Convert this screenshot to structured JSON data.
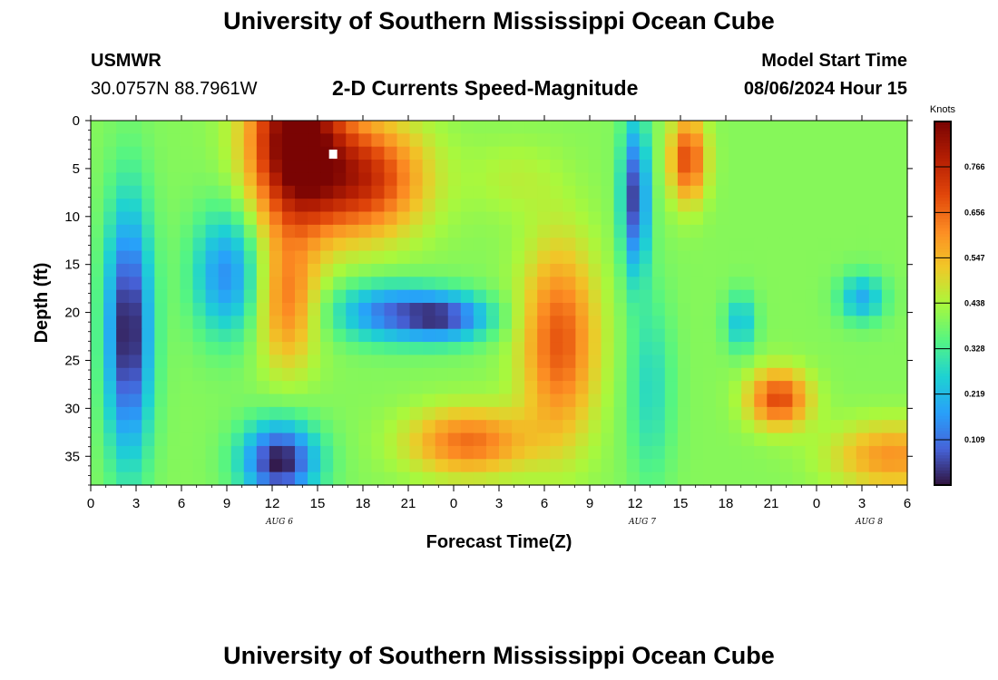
{
  "header": {
    "title": "University of Southern Mississippi Ocean Cube",
    "station": "USMWR",
    "coords": "30.0757N  88.7961W",
    "subtitle": "2-D Currents Speed-Magnitude",
    "model_start_label": "Model Start Time",
    "model_start_value": "08/06/2024 Hour 15"
  },
  "footer": {
    "title": "University of Southern Mississippi Ocean Cube"
  },
  "chart_data": {
    "type": "heatmap",
    "title": "2-D Currents Speed-Magnitude",
    "xlabel": "Forecast Time(Z)",
    "ylabel": "Depth (ft)",
    "x_unit": "hours since Aug 6 00Z",
    "x_range": [
      0,
      54
    ],
    "x_ticks": [
      {
        "h": 0,
        "label": "0"
      },
      {
        "h": 3,
        "label": "3"
      },
      {
        "h": 6,
        "label": "6"
      },
      {
        "h": 9,
        "label": "9"
      },
      {
        "h": 12,
        "label": "12"
      },
      {
        "h": 15,
        "label": "15"
      },
      {
        "h": 18,
        "label": "18"
      },
      {
        "h": 21,
        "label": "21"
      },
      {
        "h": 24,
        "label": "0"
      },
      {
        "h": 27,
        "label": "3"
      },
      {
        "h": 30,
        "label": "6"
      },
      {
        "h": 33,
        "label": "9"
      },
      {
        "h": 36,
        "label": "12"
      },
      {
        "h": 39,
        "label": "15"
      },
      {
        "h": 42,
        "label": "18"
      },
      {
        "h": 45,
        "label": "21"
      },
      {
        "h": 48,
        "label": "0"
      },
      {
        "h": 51,
        "label": "3"
      },
      {
        "h": 54,
        "label": "6"
      }
    ],
    "date_labels": [
      {
        "h": 12,
        "label": "AUG 6"
      },
      {
        "h": 36,
        "label": "AUG 7"
      },
      {
        "h": 51,
        "label": "AUG 8"
      }
    ],
    "y_range": [
      0,
      38
    ],
    "y_ticks": [
      0,
      5,
      10,
      15,
      20,
      25,
      30,
      35
    ],
    "colorbar": {
      "unit": "Knots",
      "range": [
        0,
        0.875
      ],
      "tick_values": [
        0.109,
        0.219,
        0.328,
        0.438,
        0.547,
        0.656,
        0.766
      ],
      "tick_labels": [
        "0.109",
        "0.219",
        "0.328",
        "0.438",
        "0.547",
        "0.656",
        "0.766"
      ]
    },
    "marker": {
      "h": 16,
      "depth": 3.5
    },
    "blobs": [
      {
        "h": 13.5,
        "d": 2,
        "sh": 3,
        "sd": 9,
        "a": 0.5
      },
      {
        "h": 18,
        "d": 6,
        "sh": 4,
        "sd": 6,
        "a": 0.35
      },
      {
        "h": 13,
        "d": 19,
        "sh": 2,
        "sd": 7,
        "a": 0.22
      },
      {
        "h": 2.5,
        "d": 22,
        "sh": 1.5,
        "sd": 13,
        "a": -0.4
      },
      {
        "h": 9,
        "d": 16,
        "sh": 2.2,
        "sd": 6.5,
        "a": -0.25
      },
      {
        "h": 12.5,
        "d": 35.5,
        "sh": 2.5,
        "sd": 4,
        "a": -0.4
      },
      {
        "h": 19.5,
        "d": 20,
        "sh": 3.5,
        "sd": 3,
        "a": -0.25
      },
      {
        "h": 23.5,
        "d": 20.5,
        "sh": 3,
        "sd": 2.5,
        "a": -0.3
      },
      {
        "h": 25,
        "d": 33.5,
        "sh": 4,
        "sd": 3.5,
        "a": 0.25
      },
      {
        "h": 31,
        "d": 23,
        "sh": 2.5,
        "sd": 10,
        "a": 0.28
      },
      {
        "h": 36,
        "d": 8,
        "sh": 0.9,
        "sd": 8,
        "a": -0.35
      },
      {
        "h": 39.5,
        "d": 4,
        "sh": 1.2,
        "sd": 4.5,
        "a": 0.3
      },
      {
        "h": 45.5,
        "d": 29,
        "sh": 2,
        "sd": 3,
        "a": 0.3
      },
      {
        "h": 53,
        "d": 35,
        "sh": 4,
        "sd": 3.5,
        "a": 0.2
      },
      {
        "h": 43,
        "d": 21,
        "sh": 1,
        "sd": 3,
        "a": -0.17
      },
      {
        "h": 51,
        "d": 18.5,
        "sh": 1.5,
        "sd": 2.5,
        "a": -0.2
      },
      {
        "h": 37,
        "d": 28,
        "sh": 1.5,
        "sd": 10,
        "a": -0.12
      },
      {
        "h": 28,
        "d": 6,
        "sh": 3,
        "sd": 4,
        "a": 0.05
      }
    ],
    "base_value": 0.4,
    "coarse_grid": {
      "nx": 64,
      "ny": 28
    }
  }
}
